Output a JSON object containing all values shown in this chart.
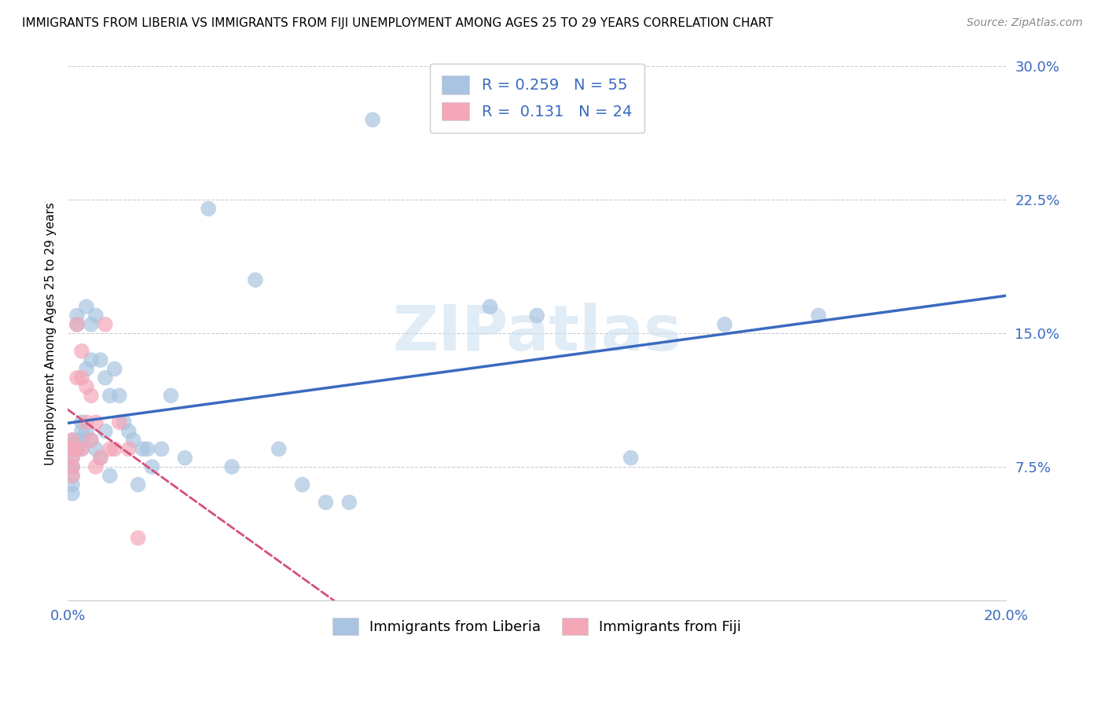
{
  "title": "IMMIGRANTS FROM LIBERIA VS IMMIGRANTS FROM FIJI UNEMPLOYMENT AMONG AGES 25 TO 29 YEARS CORRELATION CHART",
  "source": "Source: ZipAtlas.com",
  "ylabel": "Unemployment Among Ages 25 to 29 years",
  "xlim": [
    0.0,
    0.2
  ],
  "ylim": [
    0.0,
    0.3
  ],
  "xticks": [
    0.0,
    0.04,
    0.08,
    0.12,
    0.16,
    0.2
  ],
  "xtick_labels": [
    "0.0%",
    "",
    "",
    "",
    "",
    "20.0%"
  ],
  "yticks_right": [
    0.0,
    0.075,
    0.15,
    0.225,
    0.3
  ],
  "ytick_labels_right": [
    "",
    "7.5%",
    "15.0%",
    "22.5%",
    "30.0%"
  ],
  "liberia_color": "#a8c4e0",
  "fiji_color": "#f4a7b9",
  "liberia_line_color": "#3a6abf",
  "fiji_line_color": "#d44f7a",
  "liberia_R": 0.259,
  "liberia_N": 55,
  "fiji_R": 0.131,
  "fiji_N": 24,
  "watermark": "ZIPatlas",
  "liberia_x": [
    0.001,
    0.001,
    0.001,
    0.001,
    0.001,
    0.001,
    0.001,
    0.001,
    0.002,
    0.002,
    0.002,
    0.002,
    0.003,
    0.003,
    0.003,
    0.003,
    0.004,
    0.004,
    0.004,
    0.005,
    0.005,
    0.005,
    0.006,
    0.006,
    0.007,
    0.007,
    0.008,
    0.008,
    0.009,
    0.009,
    0.01,
    0.011,
    0.012,
    0.013,
    0.014,
    0.015,
    0.016,
    0.017,
    0.018,
    0.02,
    0.022,
    0.025,
    0.03,
    0.035,
    0.04,
    0.045,
    0.05,
    0.055,
    0.06,
    0.065,
    0.09,
    0.1,
    0.12,
    0.14,
    0.16
  ],
  "liberia_y": [
    0.09,
    0.085,
    0.08,
    0.075,
    0.075,
    0.07,
    0.065,
    0.06,
    0.16,
    0.155,
    0.09,
    0.085,
    0.1,
    0.095,
    0.09,
    0.085,
    0.165,
    0.13,
    0.095,
    0.155,
    0.135,
    0.09,
    0.16,
    0.085,
    0.135,
    0.08,
    0.125,
    0.095,
    0.115,
    0.07,
    0.13,
    0.115,
    0.1,
    0.095,
    0.09,
    0.065,
    0.085,
    0.085,
    0.075,
    0.085,
    0.115,
    0.08,
    0.22,
    0.075,
    0.18,
    0.085,
    0.065,
    0.055,
    0.055,
    0.27,
    0.165,
    0.16,
    0.08,
    0.155,
    0.16
  ],
  "fiji_x": [
    0.001,
    0.001,
    0.001,
    0.001,
    0.001,
    0.002,
    0.002,
    0.002,
    0.003,
    0.003,
    0.003,
    0.004,
    0.004,
    0.005,
    0.005,
    0.006,
    0.006,
    0.007,
    0.008,
    0.009,
    0.01,
    0.011,
    0.013,
    0.015
  ],
  "fiji_y": [
    0.09,
    0.085,
    0.08,
    0.075,
    0.07,
    0.155,
    0.125,
    0.085,
    0.14,
    0.125,
    0.085,
    0.12,
    0.1,
    0.115,
    0.09,
    0.1,
    0.075,
    0.08,
    0.155,
    0.085,
    0.085,
    0.1,
    0.085,
    0.035
  ]
}
